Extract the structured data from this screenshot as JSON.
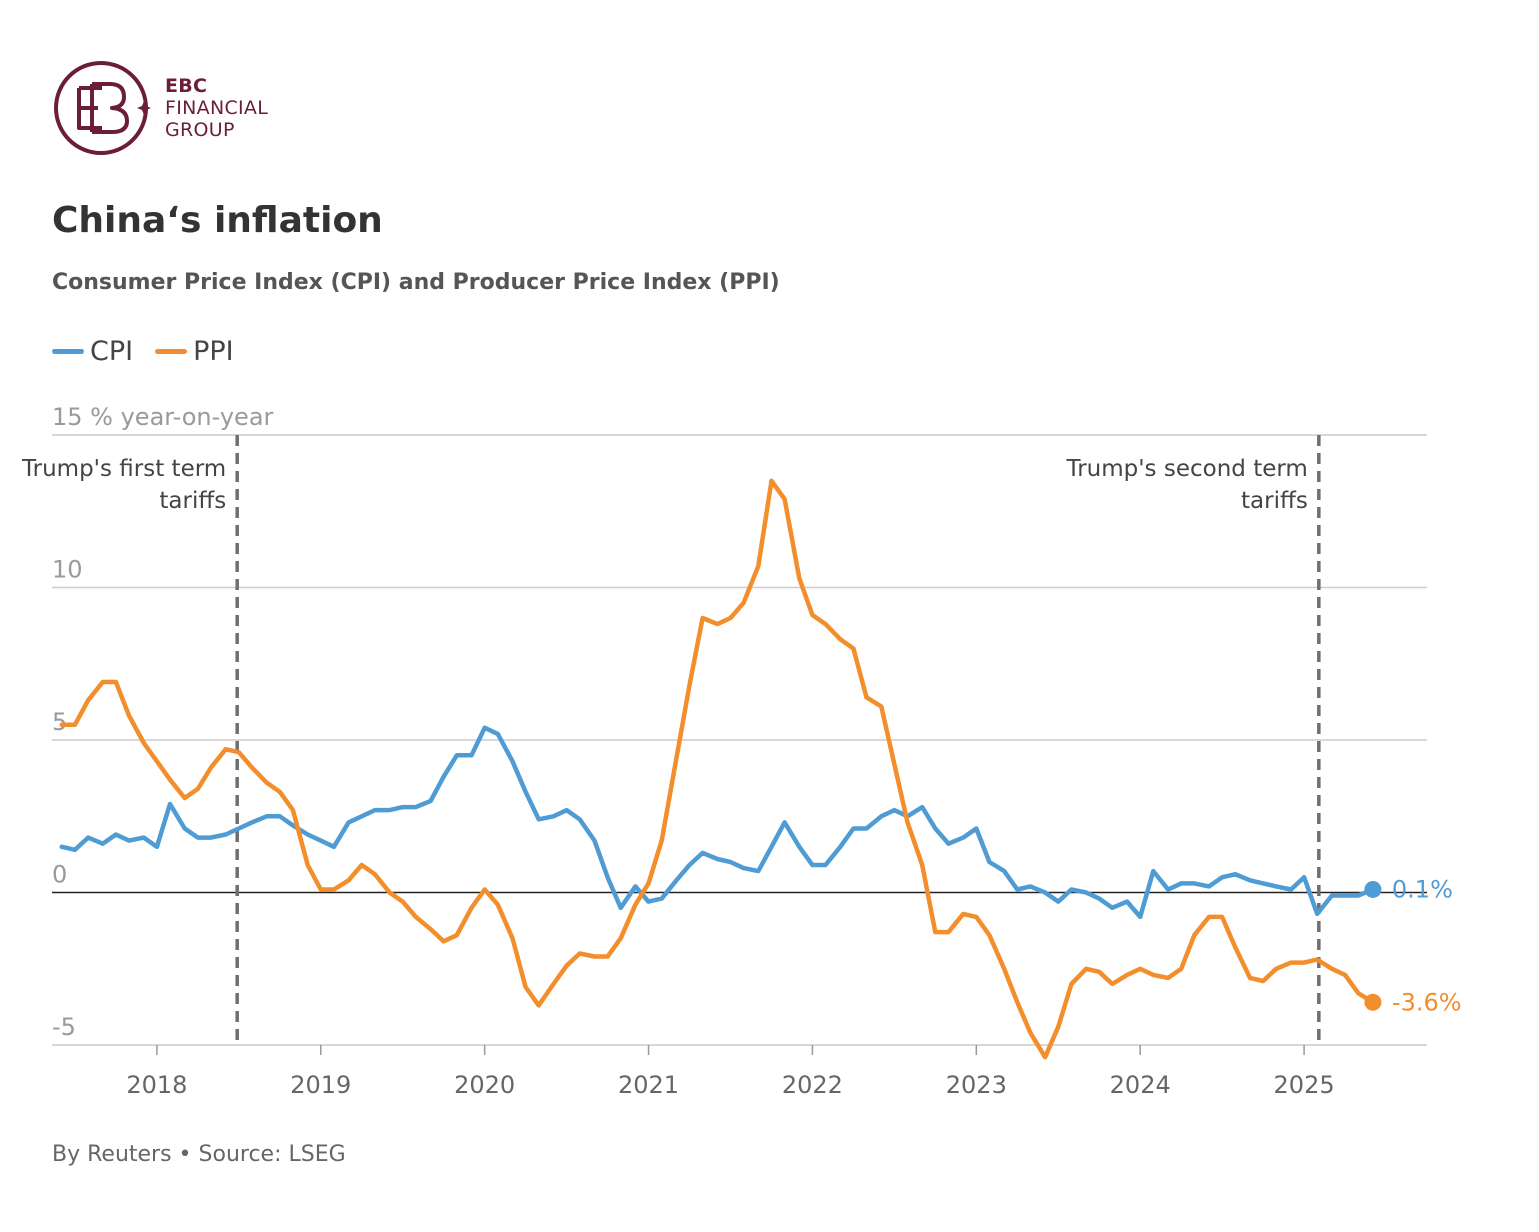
{
  "brand": {
    "line1": "EBC",
    "line2": "FINANCIAL",
    "line3": "GROUP",
    "color": "#6b1d3a"
  },
  "header": {
    "title": "China‘s inflation",
    "subtitle": "Consumer Price Index (CPI) and Producer Price Index (PPI)"
  },
  "legend": {
    "items": [
      {
        "label": "CPI",
        "color": "#4f9bd3"
      },
      {
        "label": "PPI",
        "color": "#f28e2b"
      }
    ]
  },
  "footer": {
    "text": "By Reuters • Source: LSEG"
  },
  "chart_data": {
    "type": "line",
    "title": "China‘s inflation",
    "subtitle": "Consumer Price Index (CPI) and Producer Price Index (PPI)",
    "ylabel": "% year-on-year",
    "ylim": [
      -5,
      15
    ],
    "yticks": [
      -5,
      0,
      5,
      10,
      15
    ],
    "xlim": [
      2017.36,
      2025.75
    ],
    "xticks": [
      2018,
      2019,
      2020,
      2021,
      2022,
      2023,
      2024,
      2025
    ],
    "grid": true,
    "legend_position": "top-left",
    "series": [
      {
        "name": "CPI",
        "color": "#4f9bd3",
        "end_label": "0.1%",
        "points": [
          [
            2017.42,
            1.5
          ],
          [
            2017.5,
            1.4
          ],
          [
            2017.58,
            1.8
          ],
          [
            2017.67,
            1.6
          ],
          [
            2017.75,
            1.9
          ],
          [
            2017.83,
            1.7
          ],
          [
            2017.92,
            1.8
          ],
          [
            2018.0,
            1.5
          ],
          [
            2018.08,
            2.9
          ],
          [
            2018.17,
            2.1
          ],
          [
            2018.25,
            1.8
          ],
          [
            2018.33,
            1.8
          ],
          [
            2018.42,
            1.9
          ],
          [
            2018.5,
            2.1
          ],
          [
            2018.58,
            2.3
          ],
          [
            2018.67,
            2.5
          ],
          [
            2018.75,
            2.5
          ],
          [
            2018.83,
            2.2
          ],
          [
            2018.92,
            1.9
          ],
          [
            2019.0,
            1.7
          ],
          [
            2019.08,
            1.5
          ],
          [
            2019.17,
            2.3
          ],
          [
            2019.25,
            2.5
          ],
          [
            2019.33,
            2.7
          ],
          [
            2019.42,
            2.7
          ],
          [
            2019.5,
            2.8
          ],
          [
            2019.58,
            2.8
          ],
          [
            2019.67,
            3.0
          ],
          [
            2019.75,
            3.8
          ],
          [
            2019.83,
            4.5
          ],
          [
            2019.92,
            4.5
          ],
          [
            2020.0,
            5.4
          ],
          [
            2020.08,
            5.2
          ],
          [
            2020.17,
            4.3
          ],
          [
            2020.25,
            3.3
          ],
          [
            2020.33,
            2.4
          ],
          [
            2020.42,
            2.5
          ],
          [
            2020.5,
            2.7
          ],
          [
            2020.58,
            2.4
          ],
          [
            2020.67,
            1.7
          ],
          [
            2020.75,
            0.5
          ],
          [
            2020.83,
            -0.5
          ],
          [
            2020.92,
            0.2
          ],
          [
            2021.0,
            -0.3
          ],
          [
            2021.08,
            -0.2
          ],
          [
            2021.17,
            0.4
          ],
          [
            2021.25,
            0.9
          ],
          [
            2021.33,
            1.3
          ],
          [
            2021.42,
            1.1
          ],
          [
            2021.5,
            1.0
          ],
          [
            2021.58,
            0.8
          ],
          [
            2021.67,
            0.7
          ],
          [
            2021.75,
            1.5
          ],
          [
            2021.83,
            2.3
          ],
          [
            2021.92,
            1.5
          ],
          [
            2022.0,
            0.9
          ],
          [
            2022.08,
            0.9
          ],
          [
            2022.17,
            1.5
          ],
          [
            2022.25,
            2.1
          ],
          [
            2022.33,
            2.1
          ],
          [
            2022.42,
            2.5
          ],
          [
            2022.5,
            2.7
          ],
          [
            2022.58,
            2.5
          ],
          [
            2022.67,
            2.8
          ],
          [
            2022.75,
            2.1
          ],
          [
            2022.83,
            1.6
          ],
          [
            2022.92,
            1.8
          ],
          [
            2023.0,
            2.1
          ],
          [
            2023.08,
            1.0
          ],
          [
            2023.17,
            0.7
          ],
          [
            2023.25,
            0.1
          ],
          [
            2023.33,
            0.2
          ],
          [
            2023.42,
            0.0
          ],
          [
            2023.5,
            -0.3
          ],
          [
            2023.58,
            0.1
          ],
          [
            2023.67,
            0.0
          ],
          [
            2023.75,
            -0.2
          ],
          [
            2023.83,
            -0.5
          ],
          [
            2023.92,
            -0.3
          ],
          [
            2024.0,
            -0.8
          ],
          [
            2024.08,
            0.7
          ],
          [
            2024.17,
            0.1
          ],
          [
            2024.25,
            0.3
          ],
          [
            2024.33,
            0.3
          ],
          [
            2024.42,
            0.2
          ],
          [
            2024.5,
            0.5
          ],
          [
            2024.58,
            0.6
          ],
          [
            2024.67,
            0.4
          ],
          [
            2024.75,
            0.3
          ],
          [
            2024.83,
            0.2
          ],
          [
            2024.92,
            0.1
          ],
          [
            2025.0,
            0.5
          ],
          [
            2025.08,
            -0.7
          ],
          [
            2025.17,
            -0.1
          ],
          [
            2025.25,
            -0.1
          ],
          [
            2025.33,
            -0.1
          ],
          [
            2025.42,
            0.1
          ]
        ]
      },
      {
        "name": "PPI",
        "color": "#f28e2b",
        "end_label": "-3.6%",
        "points": [
          [
            2017.42,
            5.5
          ],
          [
            2017.5,
            5.5
          ],
          [
            2017.58,
            6.3
          ],
          [
            2017.67,
            6.9
          ],
          [
            2017.75,
            6.9
          ],
          [
            2017.83,
            5.8
          ],
          [
            2017.92,
            4.9
          ],
          [
            2018.0,
            4.3
          ],
          [
            2018.08,
            3.7
          ],
          [
            2018.17,
            3.1
          ],
          [
            2018.25,
            3.4
          ],
          [
            2018.33,
            4.1
          ],
          [
            2018.42,
            4.7
          ],
          [
            2018.5,
            4.6
          ],
          [
            2018.58,
            4.1
          ],
          [
            2018.67,
            3.6
          ],
          [
            2018.75,
            3.3
          ],
          [
            2018.83,
            2.7
          ],
          [
            2018.92,
            0.9
          ],
          [
            2019.0,
            0.1
          ],
          [
            2019.08,
            0.1
          ],
          [
            2019.17,
            0.4
          ],
          [
            2019.25,
            0.9
          ],
          [
            2019.33,
            0.6
          ],
          [
            2019.42,
            0.0
          ],
          [
            2019.5,
            -0.3
          ],
          [
            2019.58,
            -0.8
          ],
          [
            2019.67,
            -1.2
          ],
          [
            2019.75,
            -1.6
          ],
          [
            2019.83,
            -1.4
          ],
          [
            2019.92,
            -0.5
          ],
          [
            2020.0,
            0.1
          ],
          [
            2020.08,
            -0.4
          ],
          [
            2020.17,
            -1.5
          ],
          [
            2020.25,
            -3.1
          ],
          [
            2020.33,
            -3.7
          ],
          [
            2020.42,
            -3.0
          ],
          [
            2020.5,
            -2.4
          ],
          [
            2020.58,
            -2.0
          ],
          [
            2020.67,
            -2.1
          ],
          [
            2020.75,
            -2.1
          ],
          [
            2020.83,
            -1.5
          ],
          [
            2020.92,
            -0.4
          ],
          [
            2021.0,
            0.3
          ],
          [
            2021.08,
            1.7
          ],
          [
            2021.17,
            4.4
          ],
          [
            2021.25,
            6.8
          ],
          [
            2021.33,
            9.0
          ],
          [
            2021.42,
            8.8
          ],
          [
            2021.5,
            9.0
          ],
          [
            2021.58,
            9.5
          ],
          [
            2021.67,
            10.7
          ],
          [
            2021.75,
            13.5
          ],
          [
            2021.83,
            12.9
          ],
          [
            2021.92,
            10.3
          ],
          [
            2022.0,
            9.1
          ],
          [
            2022.08,
            8.8
          ],
          [
            2022.17,
            8.3
          ],
          [
            2022.25,
            8.0
          ],
          [
            2022.33,
            6.4
          ],
          [
            2022.42,
            6.1
          ],
          [
            2022.5,
            4.2
          ],
          [
            2022.58,
            2.3
          ],
          [
            2022.67,
            0.9
          ],
          [
            2022.75,
            -1.3
          ],
          [
            2022.83,
            -1.3
          ],
          [
            2022.92,
            -0.7
          ],
          [
            2023.0,
            -0.8
          ],
          [
            2023.08,
            -1.4
          ],
          [
            2023.17,
            -2.5
          ],
          [
            2023.25,
            -3.6
          ],
          [
            2023.33,
            -4.6
          ],
          [
            2023.42,
            -5.4
          ],
          [
            2023.5,
            -4.4
          ],
          [
            2023.58,
            -3.0
          ],
          [
            2023.67,
            -2.5
          ],
          [
            2023.75,
            -2.6
          ],
          [
            2023.83,
            -3.0
          ],
          [
            2023.92,
            -2.7
          ],
          [
            2024.0,
            -2.5
          ],
          [
            2024.08,
            -2.7
          ],
          [
            2024.17,
            -2.8
          ],
          [
            2024.25,
            -2.5
          ],
          [
            2024.33,
            -1.4
          ],
          [
            2024.42,
            -0.8
          ],
          [
            2024.5,
            -0.8
          ],
          [
            2024.58,
            -1.8
          ],
          [
            2024.67,
            -2.8
          ],
          [
            2024.75,
            -2.9
          ],
          [
            2024.83,
            -2.5
          ],
          [
            2024.92,
            -2.3
          ],
          [
            2025.0,
            -2.3
          ],
          [
            2025.08,
            -2.2
          ],
          [
            2025.17,
            -2.5
          ],
          [
            2025.25,
            -2.7
          ],
          [
            2025.33,
            -3.3
          ],
          [
            2025.42,
            -3.6
          ]
        ]
      }
    ],
    "annotations": [
      {
        "x": 2018.49,
        "text_lines": [
          "Trump's first term",
          "tariffs"
        ]
      },
      {
        "x": 2025.09,
        "text_lines": [
          "Trump's second term",
          "tariffs"
        ]
      }
    ]
  }
}
